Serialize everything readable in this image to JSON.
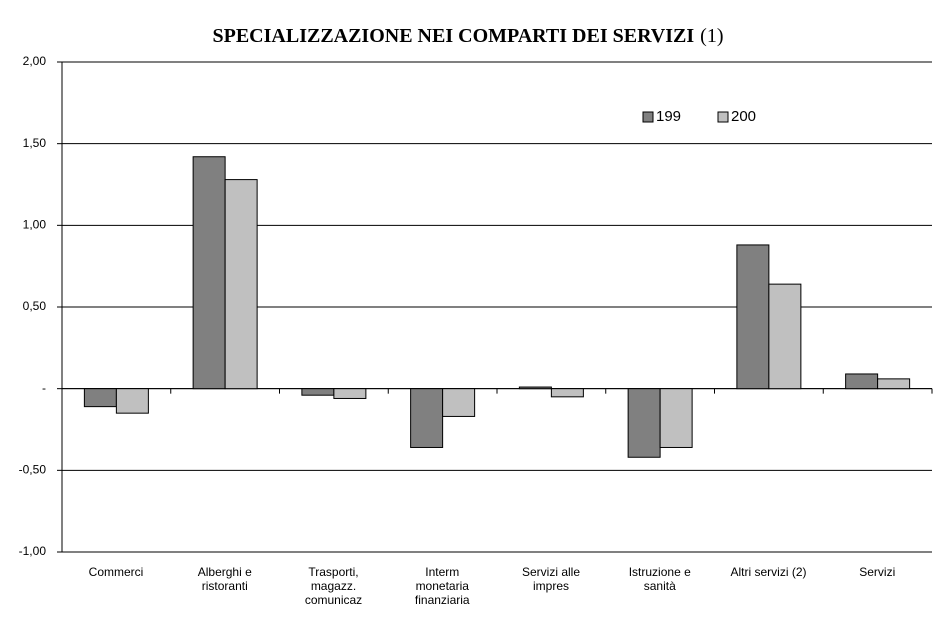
{
  "chart_data": {
    "type": "bar",
    "title": "SPECIALIZZAZIONE NEI COMPARTI DEI SERVIZI",
    "title_note": "(1)",
    "categories": [
      "Commerci",
      "Alberghi e\nristoranti",
      "Trasporti,\nmagazz.\ncomunicaz",
      "Interm\nmonetaria\nfinanziaria",
      "Servizi alle\nimpres",
      "Istruzione e\nsanità",
      "Altri servizi (2)",
      "Servizi"
    ],
    "series": [
      {
        "name": "199",
        "color": "#808080",
        "values": [
          -0.11,
          1.42,
          -0.04,
          -0.36,
          0.01,
          -0.42,
          0.88,
          0.09
        ]
      },
      {
        "name": "200",
        "color": "#c0c0c0",
        "values": [
          -0.15,
          1.28,
          -0.06,
          -0.17,
          -0.05,
          -0.36,
          0.64,
          0.06
        ]
      }
    ],
    "ylim": [
      -1,
      2
    ],
    "yticks": [
      {
        "value": -1,
        "label": "-1,00"
      },
      {
        "value": -0.5,
        "label": "-0,50"
      },
      {
        "value": 0,
        "label": "-"
      },
      {
        "value": 0.5,
        "label": "0,50"
      },
      {
        "value": 1,
        "label": "1,00"
      },
      {
        "value": 1.5,
        "label": "1,50"
      },
      {
        "value": 2,
        "label": "2,00"
      }
    ],
    "grid": true,
    "legend": "upper right"
  }
}
